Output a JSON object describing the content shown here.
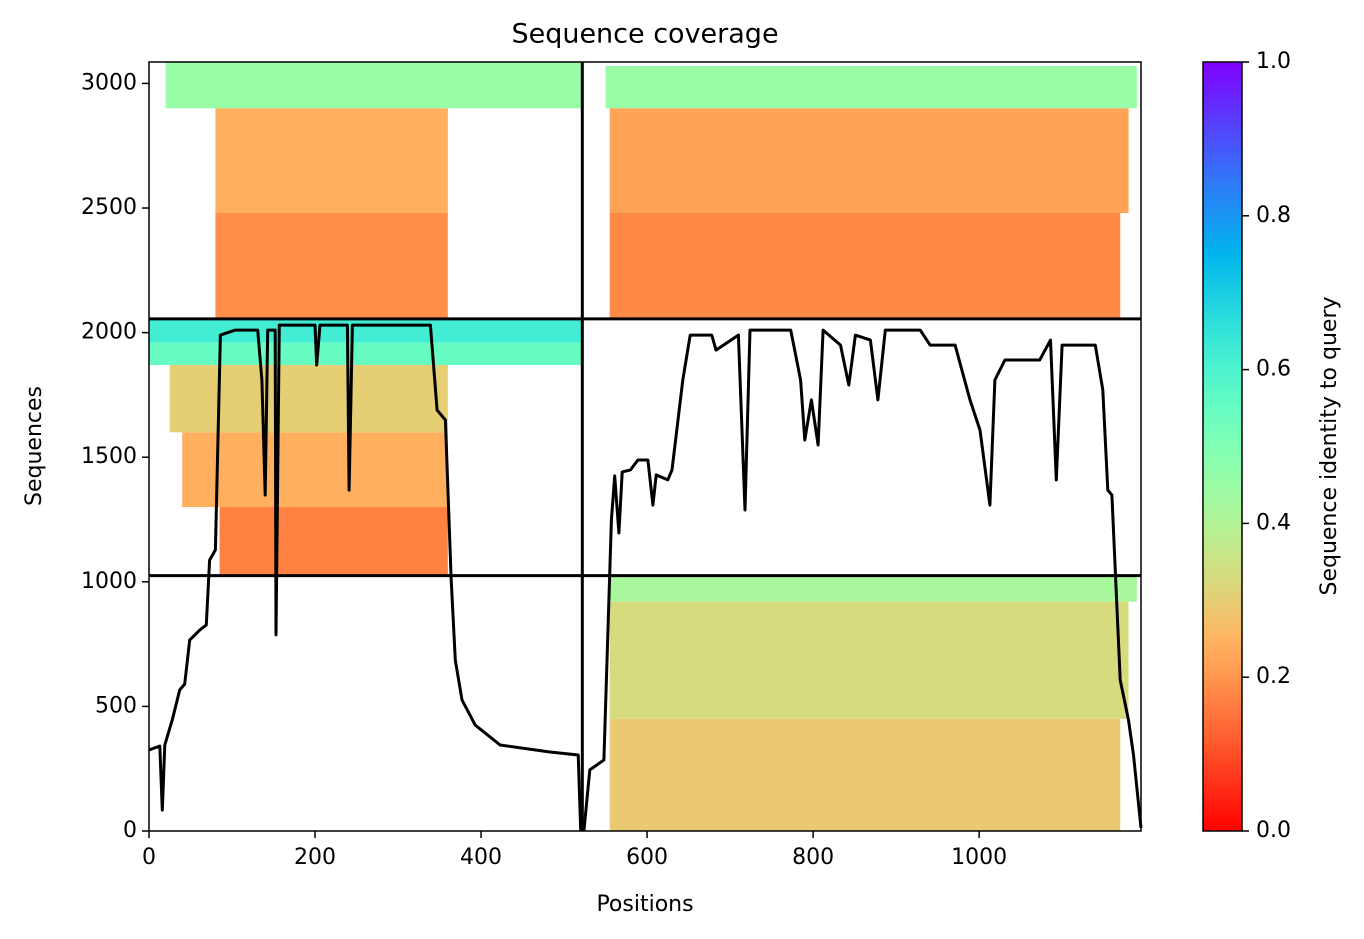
{
  "chart_data": {
    "type": "coverage",
    "title": "Sequence coverage",
    "x_label": "Positions",
    "y_label": "Sequences",
    "xlim": [
      0,
      1195
    ],
    "ylim": [
      0,
      3086
    ],
    "xticks": [
      0,
      200,
      400,
      600,
      800,
      1000
    ],
    "yticks": [
      0,
      500,
      1000,
      1500,
      2000,
      2500,
      3000
    ],
    "colormap": "rainbow_r",
    "line_color": "#000000",
    "divider_color": "#000000",
    "dividers_x": [
      522
    ],
    "dividers_y": [
      1025,
      2055
    ],
    "blocks": [
      {
        "x": [
          20,
          522
        ],
        "y": [
          2900,
          3086
        ],
        "identity": 0.45
      },
      {
        "x": [
          80,
          360
        ],
        "y": [
          2480,
          2900
        ],
        "identity": 0.24
      },
      {
        "x": [
          80,
          360
        ],
        "y": [
          2060,
          2480
        ],
        "identity": 0.19
      },
      {
        "x": [
          550,
          1190
        ],
        "y": [
          2900,
          3070
        ],
        "identity": 0.45
      },
      {
        "x": [
          555,
          1180
        ],
        "y": [
          2480,
          2900
        ],
        "identity": 0.22
      },
      {
        "x": [
          555,
          1170
        ],
        "y": [
          2060,
          2480
        ],
        "identity": 0.18
      },
      {
        "x": [
          0,
          522
        ],
        "y": [
          1960,
          2055
        ],
        "identity": 0.62
      },
      {
        "x": [
          0,
          522
        ],
        "y": [
          1870,
          1960
        ],
        "identity": 0.55
      },
      {
        "x": [
          25,
          360
        ],
        "y": [
          1600,
          1870
        ],
        "identity": 0.3
      },
      {
        "x": [
          40,
          360
        ],
        "y": [
          1300,
          1600
        ],
        "identity": 0.24
      },
      {
        "x": [
          85,
          360
        ],
        "y": [
          1030,
          1300
        ],
        "identity": 0.17
      },
      {
        "x": [
          555,
          1190
        ],
        "y": [
          920,
          1025
        ],
        "identity": 0.42
      },
      {
        "x": [
          555,
          1180
        ],
        "y": [
          450,
          920
        ],
        "identity": 0.33
      },
      {
        "x": [
          555,
          1170
        ],
        "y": [
          0,
          450
        ],
        "identity": 0.29
      }
    ],
    "x": [
      0,
      13,
      16,
      19,
      28,
      37,
      43,
      49,
      61,
      69,
      73,
      80,
      86,
      104,
      131,
      136,
      140,
      143,
      152,
      153,
      157,
      200,
      202,
      206,
      239,
      241,
      245,
      339,
      347,
      357,
      364,
      369,
      377,
      393,
      423,
      483,
      517,
      520,
      524,
      531,
      548,
      557,
      561,
      566,
      570,
      580,
      589,
      601,
      607,
      611,
      625,
      630,
      643,
      652,
      678,
      683,
      710,
      718,
      724,
      773,
      785,
      790,
      798,
      806,
      812,
      833,
      843,
      851,
      869,
      878,
      887,
      929,
      941,
      971,
      989,
      1001,
      1013,
      1019,
      1031,
      1073,
      1086,
      1093,
      1100,
      1140,
      1149,
      1155,
      1160,
      1170,
      1180,
      1186,
      1195
    ],
    "values": [
      325,
      341,
      84,
      345,
      445,
      566,
      590,
      766,
      806,
      827,
      1087,
      1128,
      1990,
      2010,
      2010,
      1810,
      1348,
      2010,
      2010,
      787,
      2030,
      2030,
      1870,
      2030,
      2030,
      1368,
      2030,
      2030,
      1689,
      1649,
      1007,
      686,
      526,
      425,
      345,
      317,
      305,
      4,
      4,
      245,
      285,
      1248,
      1425,
      1196,
      1441,
      1449,
      1489,
      1489,
      1308,
      1429,
      1409,
      1449,
      1810,
      1990,
      1990,
      1930,
      1990,
      1288,
      2010,
      2010,
      1810,
      1569,
      1730,
      1549,
      2010,
      1950,
      1790,
      1990,
      1970,
      1730,
      2010,
      2010,
      1950,
      1950,
      1730,
      1609,
      1308,
      1810,
      1890,
      1890,
      1970,
      1409,
      1950,
      1950,
      1770,
      1368,
      1348,
      606,
      445,
      305,
      12
    ],
    "colorbar": {
      "label": "Sequence identity to query",
      "lim": [
        0,
        1
      ],
      "ticks": [
        {
          "value": 0,
          "label": "0.0"
        },
        0.2,
        0.4,
        0.6,
        0.8,
        {
          "value": 1,
          "label": "1.0"
        }
      ]
    }
  }
}
